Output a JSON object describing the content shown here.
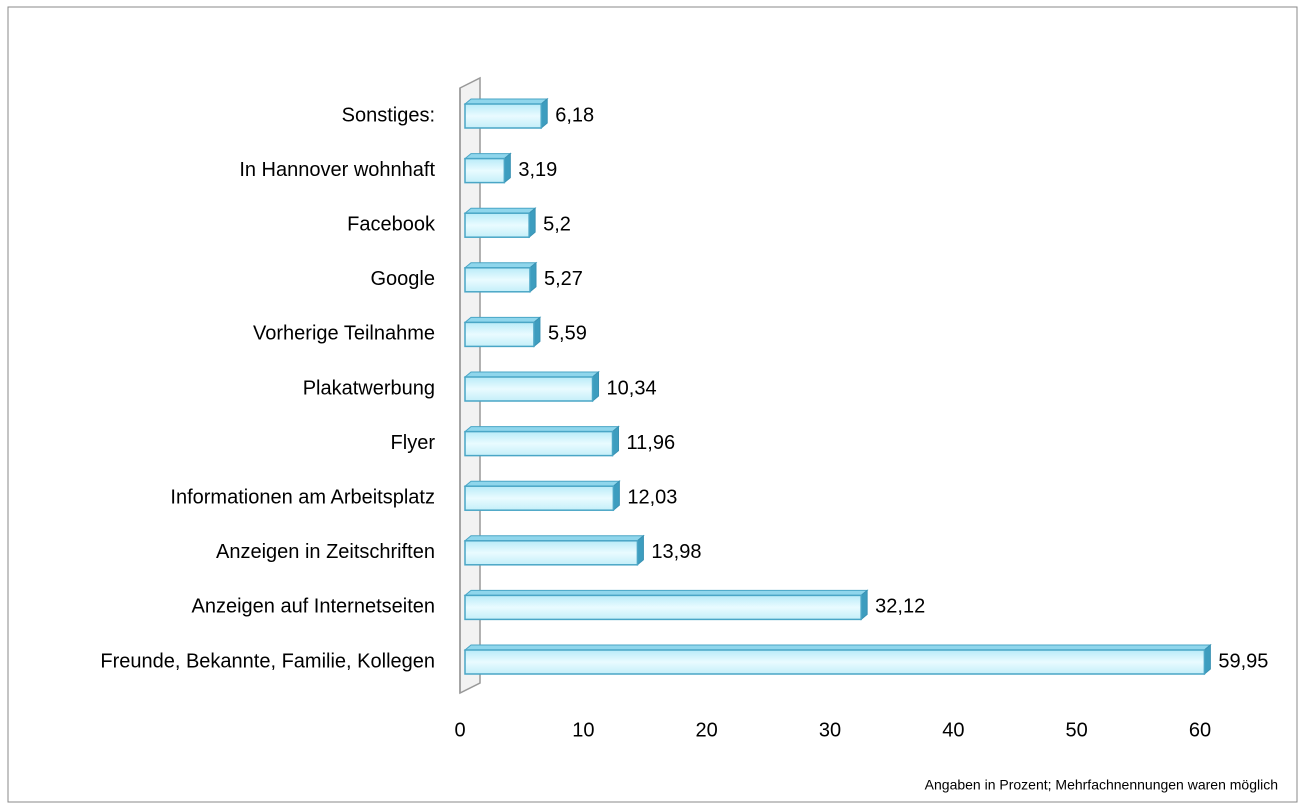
{
  "chart_data": {
    "type": "bar",
    "orientation": "horizontal",
    "categories": [
      "Sonstiges:",
      "In Hannover wohnhaft",
      "Facebook",
      "Google",
      "Vorherige Teilnahme",
      "Plakatwerbung",
      "Flyer",
      "Informationen am Arbeitsplatz",
      "Anzeigen in Zeitschriften",
      "Anzeigen auf Internetseiten",
      "Freunde, Bekannte, Familie, Kollegen"
    ],
    "values": [
      6.18,
      3.19,
      5.2,
      5.27,
      5.59,
      10.34,
      11.96,
      12.03,
      13.98,
      32.12,
      59.95
    ],
    "value_labels": [
      "6,18",
      "3,19",
      "5,2",
      "5,27",
      "5,59",
      "10,34",
      "11,96",
      "12,03",
      "13,98",
      "32,12",
      "59,95"
    ],
    "color": "#cdf2fb",
    "xlim": [
      0,
      60
    ],
    "xticks": [
      0,
      10,
      20,
      30,
      40,
      50,
      60
    ],
    "annotation": "Angaben in Prozent; Mehrfachnennungen waren möglich"
  }
}
